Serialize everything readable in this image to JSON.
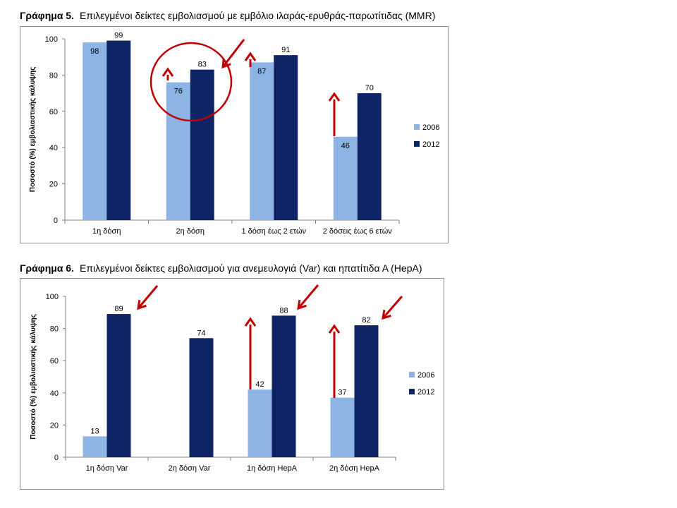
{
  "colors": {
    "s2006": "#8DB4E2",
    "s2012": "#0F2464",
    "annotation": "#C00000",
    "axis": "#808080"
  },
  "chart_data": [
    {
      "type": "bar",
      "caption_label": "Γράφημα 5.",
      "caption_text": "Επιλεγμένοι δείκτες εμβολιασμού με εμβόλιο ιλαράς-ερυθράς-παρωτίτιδας (MMR)",
      "ylabel": "Ποσοστό (%) εμβολιαστικής κάλυψης",
      "ylim": [
        0,
        100
      ],
      "yticks": [
        "0",
        "20",
        "40",
        "60",
        "80",
        "100"
      ],
      "categories": [
        "1η δόση",
        "2η δόση",
        "1 δόση έως 2 ετών",
        "2 δόσεις έως 6 ετών"
      ],
      "series": [
        {
          "name": "2006",
          "values": [
            98,
            76,
            87,
            46
          ]
        },
        {
          "name": "2012",
          "values": [
            99,
            83,
            91,
            70
          ]
        }
      ],
      "legend_position": "right",
      "annotations": "red upward arrows on 2η δόση, 1 δόση έως 2 ετών and 2 δόσεις έως 6 ετών; red circle and diagonal arrow on 2η δόση"
    },
    {
      "type": "bar",
      "caption_label": "Γράφημα 6.",
      "caption_text": "Επιλεγμένοι δείκτες εμβολιασμού για ανεμευλογιά (Var) και ηπατίτιδα Α (HepA)",
      "ylabel": "Ποσοστό (%) εμβολιαστικής κάλυψης",
      "ylim": [
        0,
        100
      ],
      "yticks": [
        "0",
        "20",
        "40",
        "60",
        "80",
        "100"
      ],
      "categories": [
        "1η δόση Var",
        "2η δόση Var",
        "1η δόση HepA",
        "2η δόση HepA"
      ],
      "series": [
        {
          "name": "2006",
          "values": [
            13,
            null,
            42,
            37
          ]
        },
        {
          "name": "2012",
          "values": [
            89,
            74,
            88,
            82
          ]
        }
      ],
      "legend_position": "right",
      "annotations": "red upward arrows on 1η δόση HepA and 2η δόση HepA; red diagonal arrows pointing at 2012 bars of 1η δόση Var, 1η δόση HepA and 2η δόση HepA"
    }
  ]
}
